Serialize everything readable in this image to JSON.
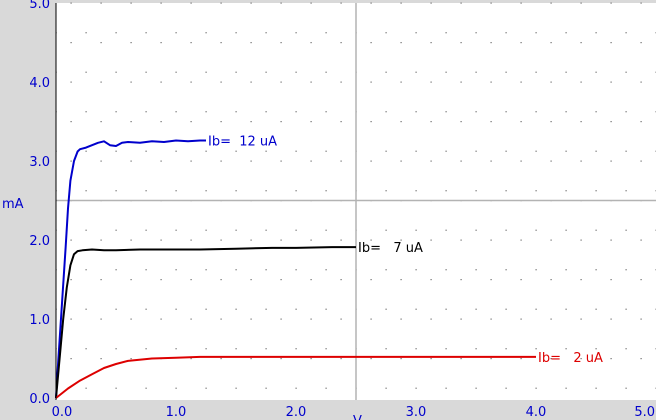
{
  "chart_data": {
    "type": "line",
    "title": "",
    "xlabel": "V",
    "ylabel": "mA",
    "xlim": [
      0,
      5
    ],
    "ylim": [
      0,
      5
    ],
    "x_ticks": [
      "0.0",
      "1.0",
      "2.0",
      "3.0",
      "4.0",
      "5.0"
    ],
    "y_ticks": [
      "0.0",
      "1.0",
      "2.0",
      "3.0",
      "4.0",
      "5.0"
    ],
    "grid": "dotted",
    "cursor": {
      "x": 2.5,
      "y": 2.5
    },
    "series": [
      {
        "name": "Ib=  12 uA",
        "color": "#0000cc",
        "x": [
          0.0,
          0.02,
          0.05,
          0.08,
          0.1,
          0.12,
          0.15,
          0.18,
          0.2,
          0.25,
          0.3,
          0.35,
          0.4,
          0.45,
          0.5,
          0.55,
          0.6,
          0.7,
          0.8,
          0.9,
          1.0,
          1.1,
          1.2,
          1.25
        ],
        "y": [
          0.0,
          0.5,
          1.2,
          1.9,
          2.4,
          2.75,
          3.0,
          3.12,
          3.15,
          3.17,
          3.2,
          3.23,
          3.25,
          3.2,
          3.19,
          3.23,
          3.24,
          3.23,
          3.25,
          3.24,
          3.26,
          3.25,
          3.26,
          3.26
        ]
      },
      {
        "name": "Ib=   7 uA",
        "color": "#000000",
        "x": [
          0.0,
          0.03,
          0.06,
          0.09,
          0.12,
          0.15,
          0.18,
          0.22,
          0.3,
          0.4,
          0.5,
          0.7,
          0.9,
          1.2,
          1.5,
          1.8,
          2.0,
          2.3,
          2.5
        ],
        "y": [
          0.0,
          0.5,
          1.0,
          1.4,
          1.68,
          1.82,
          1.86,
          1.87,
          1.88,
          1.87,
          1.87,
          1.88,
          1.88,
          1.88,
          1.89,
          1.9,
          1.9,
          1.91,
          1.91
        ]
      },
      {
        "name": "Ib=   2 uA",
        "color": "#dd0000",
        "x": [
          0.0,
          0.1,
          0.2,
          0.3,
          0.4,
          0.5,
          0.6,
          0.8,
          1.0,
          1.2,
          1.5,
          2.0,
          2.5,
          3.0,
          3.5,
          4.0
        ],
        "y": [
          0.0,
          0.12,
          0.22,
          0.3,
          0.38,
          0.43,
          0.47,
          0.5,
          0.51,
          0.52,
          0.52,
          0.52,
          0.52,
          0.52,
          0.52,
          0.52
        ]
      }
    ]
  }
}
